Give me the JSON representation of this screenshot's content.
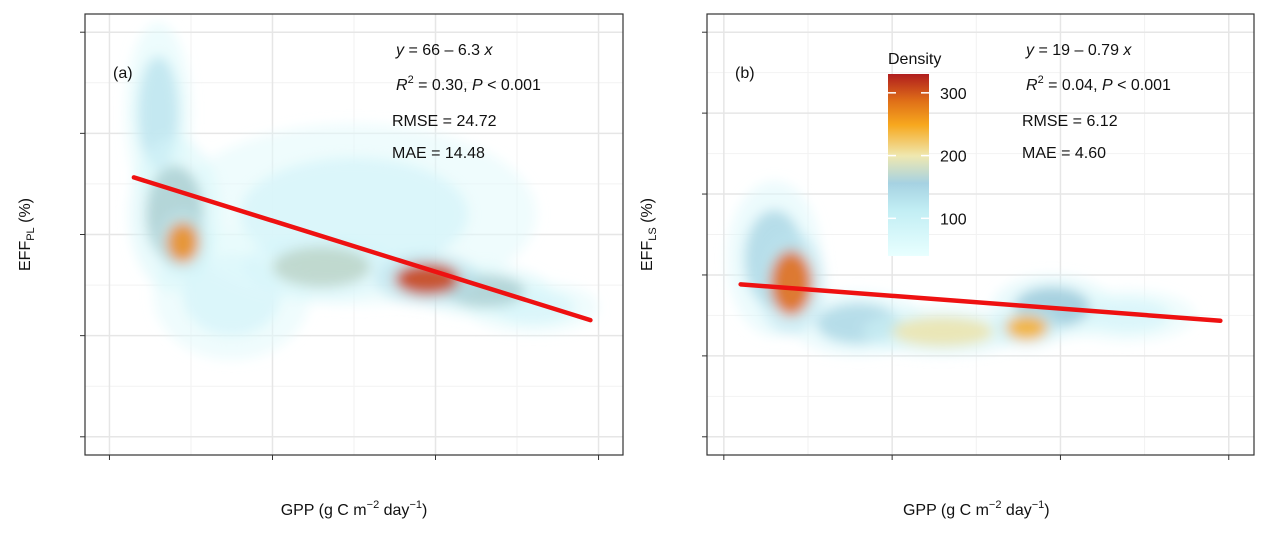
{
  "chart_data": [
    {
      "type": "scatter",
      "panel_label": "(a)",
      "xlabel": "GPP (g C m−2 day−1)",
      "ylabel": "EFF_PL (%)",
      "ylabel_main": "EFF",
      "ylabel_sub": "PL",
      "ylabel_unit": " (%)",
      "xlim": [
        -0.3,
        6.3
      ],
      "ylim": [
        -4.5,
        104.5
      ],
      "xticks": [
        0,
        2,
        4,
        6
      ],
      "yticks": [
        0,
        25,
        50,
        75,
        100
      ],
      "grid": true,
      "fit": {
        "intercept": 66,
        "slope": -6.3,
        "x_range": [
          0.3,
          5.9
        ],
        "color": "#ee1111"
      },
      "annotations": {
        "equation": "y = 66 – 6.3 x",
        "r2": "R2 = 0.30, P < 0.001",
        "r2_value": "= 0.30, ",
        "p_value": " < 0.001",
        "rmse": "RMSE = 24.72",
        "mae": "MAE = 14.48"
      },
      "density_clusters": [
        {
          "x": 0.6,
          "y": 80,
          "sx": 0.25,
          "sy": 14,
          "density": 110
        },
        {
          "x": 0.8,
          "y": 55,
          "sx": 0.35,
          "sy": 12,
          "density": 160
        },
        {
          "x": 0.9,
          "y": 48,
          "sx": 0.2,
          "sy": 5,
          "density": 270
        },
        {
          "x": 1.5,
          "y": 35,
          "sx": 0.6,
          "sy": 10,
          "density": 60
        },
        {
          "x": 2.6,
          "y": 42,
          "sx": 0.6,
          "sy": 5,
          "density": 170
        },
        {
          "x": 3.0,
          "y": 55,
          "sx": 1.4,
          "sy": 14,
          "density": 60
        },
        {
          "x": 3.9,
          "y": 39,
          "sx": 0.4,
          "sy": 4,
          "density": 310
        },
        {
          "x": 4.6,
          "y": 36,
          "sx": 0.5,
          "sy": 4,
          "density": 160
        },
        {
          "x": 5.2,
          "y": 32,
          "sx": 0.5,
          "sy": 4,
          "density": 60
        }
      ]
    },
    {
      "type": "scatter",
      "panel_label": "(b)",
      "xlabel": "GPP (g C m−2 day−1)",
      "ylabel": "EFF_LS (%)",
      "ylabel_main": "EFF",
      "ylabel_sub": "LS",
      "ylabel_unit": " (%)",
      "xlim": [
        -0.2,
        6.3
      ],
      "ylim": [
        -2.25,
        52.25
      ],
      "xticks": [
        0,
        2,
        4,
        6
      ],
      "yticks": [
        0,
        10,
        20,
        30,
        40,
        50
      ],
      "grid": true,
      "fit": {
        "intercept": 19,
        "slope": -0.79,
        "x_range": [
          0.2,
          5.9
        ],
        "color": "#ee1111"
      },
      "annotations": {
        "equation": "y = 19 – 0.79 x",
        "r2": "R2 = 0.04, P < 0.001",
        "r2_value": "= 0.04, ",
        "p_value": " < 0.001",
        "rmse": "RMSE = 6.12",
        "mae": "MAE = 4.60"
      },
      "legend": {
        "title": "Density",
        "ticks": [
          100,
          200,
          300
        ],
        "range": [
          40,
          330
        ],
        "colors": [
          "#e0ffff",
          "#b0dde8",
          "#9ec8d8",
          "#eee4aa",
          "#f7b84a",
          "#f59a10",
          "#cc4a1a",
          "#b01e1e"
        ],
        "placement": "top-center"
      },
      "density_clusters": [
        {
          "x": 0.6,
          "y": 22,
          "sx": 0.35,
          "sy": 6,
          "density": 130
        },
        {
          "x": 0.8,
          "y": 19,
          "sx": 0.25,
          "sy": 4,
          "density": 290
        },
        {
          "x": 1.6,
          "y": 14,
          "sx": 0.5,
          "sy": 2.5,
          "density": 130
        },
        {
          "x": 2.6,
          "y": 13,
          "sx": 0.6,
          "sy": 1.8,
          "density": 200
        },
        {
          "x": 3.6,
          "y": 13.5,
          "sx": 0.25,
          "sy": 1.5,
          "density": 250
        },
        {
          "x": 3.9,
          "y": 16,
          "sx": 0.45,
          "sy": 2.5,
          "density": 150
        },
        {
          "x": 4.8,
          "y": 15,
          "sx": 0.5,
          "sy": 2,
          "density": 60
        }
      ]
    }
  ]
}
